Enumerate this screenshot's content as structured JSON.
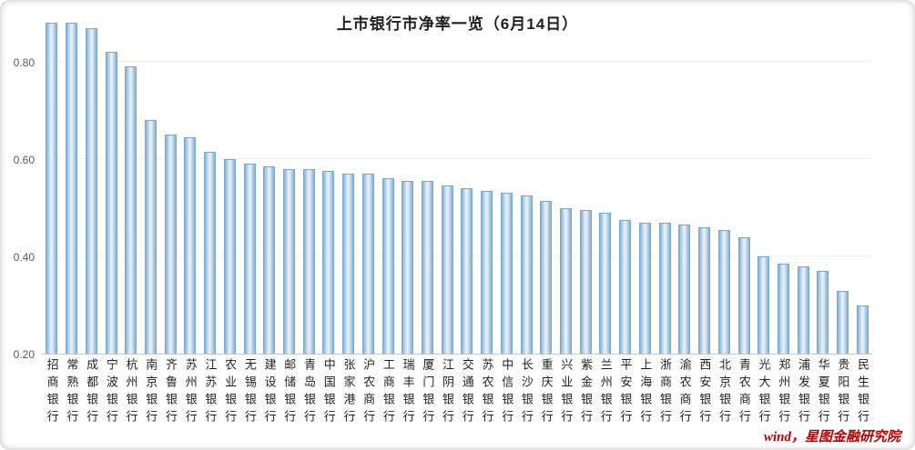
{
  "title": "上市银行市净率一览（6月14日）",
  "watermark": "wind，星图金融研究院",
  "colors": {
    "bar_edge": "#85b1d6",
    "bar_center": "#e6f1fa",
    "bar_border": "#79a7ce",
    "axis_line": "#c6c6c6",
    "tick_text": "#595959",
    "title_text": "#1f1f1f",
    "watermark_text": "#c00000"
  },
  "chart_data": {
    "type": "bar",
    "title": "上市银行市净率一览（6月14日）",
    "xlabel": "",
    "ylabel": "",
    "ylim": [
      0.2,
      0.9
    ],
    "yticks": [
      0.2,
      0.4,
      0.6,
      0.8
    ],
    "grid": false,
    "legend": "none",
    "categories": [
      "招商银行",
      "常熟银行",
      "成都银行",
      "宁波银行",
      "杭州银行",
      "南京银行",
      "齐鲁银行",
      "苏州银行",
      "江苏银行",
      "农业银行",
      "无锡银行",
      "建设银行",
      "邮储银行",
      "青岛银行",
      "中国银行",
      "张家港行",
      "沪农商行",
      "工商银行",
      "瑞丰银行",
      "厦门银行",
      "江阴银行",
      "交通银行",
      "苏农银行",
      "中信银行",
      "长沙银行",
      "重庆银行",
      "兴业银行",
      "紫金银行",
      "兰州银行",
      "平安银行",
      "上海银行",
      "浙商银行",
      "渝农商行",
      "西安银行",
      "北京银行",
      "青农商行",
      "光大银行",
      "郑州银行",
      "浦发银行",
      "华夏银行",
      "贵阳银行",
      "民生银行"
    ],
    "values": [
      0.88,
      0.88,
      0.87,
      0.82,
      0.79,
      0.68,
      0.65,
      0.645,
      0.615,
      0.6,
      0.59,
      0.585,
      0.58,
      0.58,
      0.575,
      0.57,
      0.57,
      0.56,
      0.555,
      0.555,
      0.545,
      0.54,
      0.535,
      0.53,
      0.525,
      0.515,
      0.5,
      0.495,
      0.49,
      0.475,
      0.47,
      0.47,
      0.465,
      0.46,
      0.455,
      0.44,
      0.4,
      0.385,
      0.38,
      0.37,
      0.33,
      0.3
    ]
  }
}
